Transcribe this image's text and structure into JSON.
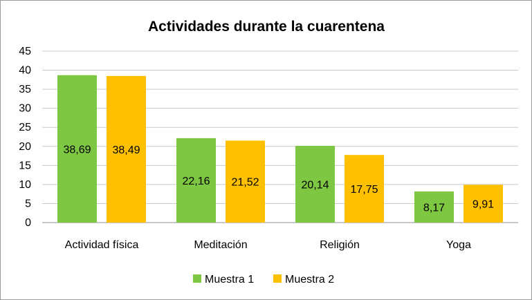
{
  "chart_data": {
    "type": "bar",
    "title": "Actividades durante la cuarentena",
    "categories": [
      "Actividad física",
      "Meditación",
      "Religión",
      "Yoga"
    ],
    "series": [
      {
        "name": "Muestra 1",
        "color": "#7DC742",
        "values": [
          38.69,
          22.16,
          20.14,
          8.17
        ],
        "labels": [
          "38,69",
          "22,16",
          "20,14",
          "8,17"
        ]
      },
      {
        "name": "Muestra 2",
        "color": "#FFC000",
        "values": [
          38.49,
          21.52,
          17.75,
          9.91
        ],
        "labels": [
          "38,49",
          "21,52",
          "17,75",
          "9,91"
        ]
      }
    ],
    "yticks": [
      0,
      5,
      10,
      15,
      20,
      25,
      30,
      35,
      40,
      45
    ],
    "ylim": [
      0,
      45
    ],
    "xlabel": "",
    "ylabel": "",
    "grid": true,
    "legend": "bottom"
  }
}
